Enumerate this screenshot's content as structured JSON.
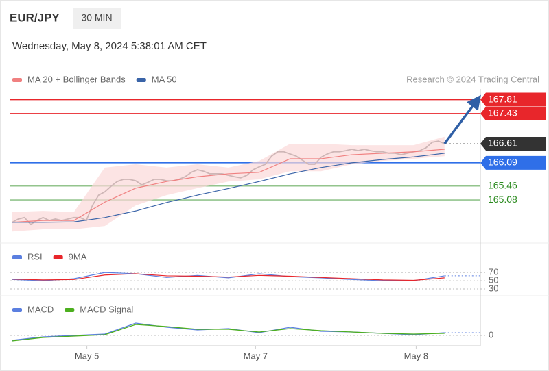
{
  "header": {
    "symbol": "EUR/JPY",
    "interval": "30 MIN",
    "timestamp": "Wednesday, May 8, 2024 5:38:01 AM CET",
    "credit": "Research © 2024 Trading Central"
  },
  "chart_data": [
    {
      "type": "line",
      "xlim": [
        -0.3,
        75.8
      ],
      "ylim": [
        164,
        168.1
      ],
      "series": [
        {
          "color": "#666666",
          "x": [
            0,
            1,
            2,
            3,
            4,
            5,
            6,
            7,
            8,
            9,
            10,
            11,
            12,
            13,
            14,
            15,
            16,
            17,
            18,
            19,
            20,
            21,
            22,
            23,
            24,
            25,
            26,
            27,
            28,
            29,
            30,
            31,
            32,
            33,
            34,
            35,
            36,
            37,
            38,
            39,
            40,
            41,
            42,
            43,
            44,
            45,
            46,
            47,
            48,
            49,
            50,
            51,
            52,
            53,
            54,
            55,
            56,
            57,
            58,
            59,
            60,
            61,
            62,
            63,
            64,
            65,
            66,
            67,
            68,
            69,
            70
          ],
          "values": [
            164.47,
            164.56,
            164.6,
            164.41,
            164.52,
            164.6,
            164.52,
            164.56,
            164.52,
            164.56,
            164.6,
            164.6,
            164.52,
            164.93,
            165.21,
            165.3,
            165.45,
            165.58,
            165.64,
            165.64,
            165.6,
            165.49,
            165.56,
            165.64,
            165.64,
            165.6,
            165.6,
            165.64,
            165.71,
            165.83,
            165.9,
            165.86,
            165.79,
            165.79,
            165.79,
            165.75,
            165.71,
            165.68,
            165.75,
            165.9,
            165.98,
            166.05,
            166.27,
            166.39,
            166.39,
            166.33,
            166.27,
            166.16,
            166.05,
            166.05,
            166.24,
            166.33,
            166.39,
            166.39,
            166.42,
            166.46,
            166.42,
            166.46,
            166.42,
            166.39,
            166.39,
            166.35,
            166.35,
            166.31,
            166.35,
            166.39,
            166.42,
            166.5,
            166.65,
            166.68,
            166.61
          ]
        },
        {
          "name": "MA 20 + Bollinger Bands",
          "color": "#f08080",
          "x": [
            0,
            5,
            10,
            15,
            20,
            25,
            30,
            35,
            40,
            45,
            50,
            55,
            60,
            65,
            70
          ],
          "values": [
            164.47,
            164.52,
            164.52,
            165.02,
            165.4,
            165.58,
            165.71,
            165.79,
            165.83,
            166.2,
            166.2,
            166.31,
            166.35,
            166.39,
            166.46
          ],
          "band": {
            "color": "#fbd9d9",
            "upper": [
              164.75,
              164.78,
              164.75,
              165.96,
              166.05,
              165.96,
              166.05,
              165.96,
              166.14,
              166.61,
              166.61,
              166.57,
              166.57,
              166.57,
              166.8
            ],
            "lower": [
              164.22,
              164.28,
              164.28,
              164.37,
              164.93,
              165.21,
              165.4,
              165.58,
              165.64,
              165.86,
              165.86,
              166.05,
              166.14,
              166.2,
              166.27
            ]
          }
        },
        {
          "name": "MA 50",
          "color": "#3a64a8",
          "x": [
            0,
            5,
            10,
            15,
            20,
            25,
            30,
            35,
            40,
            45,
            50,
            55,
            60,
            65,
            70
          ],
          "values": [
            164.47,
            164.47,
            164.48,
            164.6,
            164.78,
            165.01,
            165.21,
            165.39,
            165.58,
            165.79,
            165.96,
            166.09,
            166.18,
            166.25,
            166.35
          ]
        }
      ],
      "levels": [
        {
          "value": 167.81,
          "color": "#e8262b",
          "style": "solid",
          "flag": true
        },
        {
          "value": 167.43,
          "color": "#e8262b",
          "style": "solid",
          "flag": true
        },
        {
          "value": 166.61,
          "color": "#333333",
          "style": "dotted",
          "flag": true
        },
        {
          "value": 166.09,
          "color": "#2f6fe8",
          "style": "solid",
          "flag": true
        },
        {
          "value": 165.46,
          "color": "#2a8a1e",
          "style": "solid",
          "flag": false
        },
        {
          "value": 165.08,
          "color": "#2a8a1e",
          "style": "solid",
          "flag": false
        }
      ],
      "arrow": {
        "color": "#2f5fa6",
        "from": [
          70,
          166.61
        ],
        "to": [
          75.2,
          167.78
        ]
      }
    },
    {
      "type": "line",
      "xlim": [
        -0.3,
        75.8
      ],
      "ylim": [
        20,
        92
      ],
      "yticks": [
        30,
        50,
        70
      ],
      "grid": true,
      "series": [
        {
          "name": "RSI",
          "color": "#5b7fe0",
          "x": [
            0,
            5,
            10,
            15,
            20,
            25,
            30,
            35,
            40,
            45,
            50,
            55,
            60,
            65,
            70
          ],
          "values": [
            53,
            50,
            55,
            70,
            67,
            58,
            63,
            57,
            67,
            60,
            57,
            53,
            50,
            50,
            62
          ]
        },
        {
          "name": "9MA",
          "color": "#e8262b",
          "x": [
            0,
            5,
            10,
            15,
            20,
            25,
            30,
            35,
            40,
            45,
            50,
            55,
            60,
            65,
            70
          ],
          "values": [
            54,
            52,
            53,
            64,
            67,
            62,
            61,
            59,
            63,
            61,
            58,
            55,
            52,
            51,
            57
          ]
        }
      ]
    },
    {
      "type": "line",
      "xlim": [
        -0.3,
        75.8
      ],
      "ylim": [
        -0.15,
        0.5
      ],
      "yticks": [
        0
      ],
      "grid": true,
      "xticks": [
        {
          "value": 12.1,
          "label": "May 5"
        },
        {
          "value": 39.4,
          "label": "May 7"
        },
        {
          "value": 65.4,
          "label": "May 8"
        }
      ],
      "series": [
        {
          "name": "MACD",
          "color": "#5b7fe0",
          "x": [
            0,
            5,
            10,
            15,
            20,
            25,
            30,
            35,
            40,
            45,
            50,
            55,
            60,
            65,
            70
          ],
          "values": [
            -0.07,
            -0.02,
            0,
            0.02,
            0.18,
            0.12,
            0.08,
            0.1,
            0.04,
            0.12,
            0.06,
            0.05,
            0.03,
            0.01,
            0.04
          ]
        },
        {
          "name": "MACD Signal",
          "color": "#4caf1e",
          "x": [
            0,
            5,
            10,
            15,
            20,
            25,
            30,
            35,
            40,
            45,
            50,
            55,
            60,
            65,
            70
          ],
          "values": [
            -0.08,
            -0.03,
            -0.01,
            0.01,
            0.16,
            0.13,
            0.09,
            0.09,
            0.05,
            0.1,
            0.07,
            0.05,
            0.03,
            0.02,
            0.03
          ]
        }
      ]
    }
  ]
}
